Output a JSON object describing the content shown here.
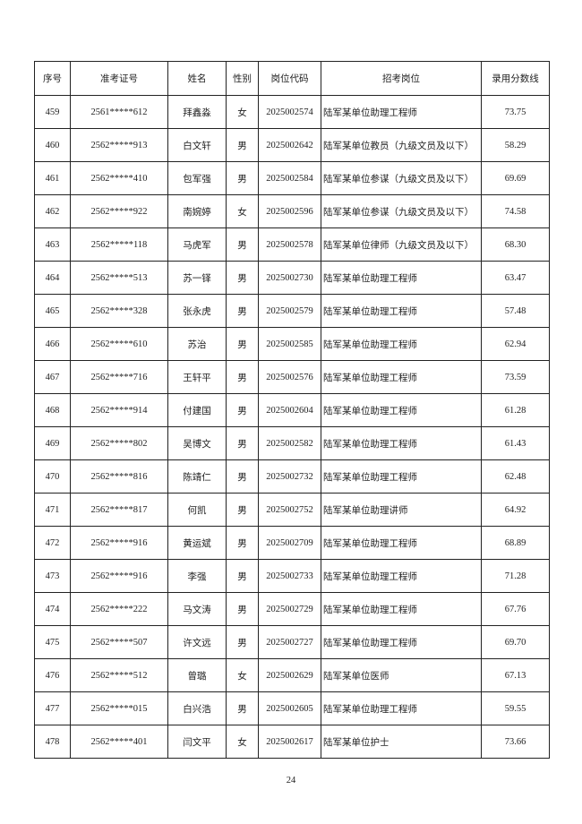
{
  "table": {
    "headers": [
      "序号",
      "准考证号",
      "姓名",
      "性别",
      "岗位代码",
      "招考岗位",
      "录用分数线"
    ],
    "rows": [
      [
        "459",
        "2561*****612",
        "拜鑫淼",
        "女",
        "2025002574",
        "陆军某单位助理工程师",
        "73.75"
      ],
      [
        "460",
        "2562*****913",
        "白文轩",
        "男",
        "2025002642",
        "陆军某单位教员（九级文员及以下）",
        "58.29"
      ],
      [
        "461",
        "2562*****410",
        "包军强",
        "男",
        "2025002584",
        "陆军某单位参谋（九级文员及以下）",
        "69.69"
      ],
      [
        "462",
        "2562*****922",
        "南婉婷",
        "女",
        "2025002596",
        "陆军某单位参谋（九级文员及以下）",
        "74.58"
      ],
      [
        "463",
        "2562*****118",
        "马虎军",
        "男",
        "2025002578",
        "陆军某单位律师（九级文员及以下）",
        "68.30"
      ],
      [
        "464",
        "2562*****513",
        "苏一铎",
        "男",
        "2025002730",
        "陆军某单位助理工程师",
        "63.47"
      ],
      [
        "465",
        "2562*****328",
        "张永虎",
        "男",
        "2025002579",
        "陆军某单位助理工程师",
        "57.48"
      ],
      [
        "466",
        "2562*****610",
        "苏治",
        "男",
        "2025002585",
        "陆军某单位助理工程师",
        "62.94"
      ],
      [
        "467",
        "2562*****716",
        "王轩平",
        "男",
        "2025002576",
        "陆军某单位助理工程师",
        "73.59"
      ],
      [
        "468",
        "2562*****914",
        "付建国",
        "男",
        "2025002604",
        "陆军某单位助理工程师",
        "61.28"
      ],
      [
        "469",
        "2562*****802",
        "吴博文",
        "男",
        "2025002582",
        "陆军某单位助理工程师",
        "61.43"
      ],
      [
        "470",
        "2562*****816",
        "陈靖仁",
        "男",
        "2025002732",
        "陆军某单位助理工程师",
        "62.48"
      ],
      [
        "471",
        "2562*****817",
        "何凯",
        "男",
        "2025002752",
        "陆军某单位助理讲师",
        "64.92"
      ],
      [
        "472",
        "2562*****916",
        "黄运斌",
        "男",
        "2025002709",
        "陆军某单位助理工程师",
        "68.89"
      ],
      [
        "473",
        "2562*****916",
        "李强",
        "男",
        "2025002733",
        "陆军某单位助理工程师",
        "71.28"
      ],
      [
        "474",
        "2562*****222",
        "马文涛",
        "男",
        "2025002729",
        "陆军某单位助理工程师",
        "67.76"
      ],
      [
        "475",
        "2562*****507",
        "许文远",
        "男",
        "2025002727",
        "陆军某单位助理工程师",
        "69.70"
      ],
      [
        "476",
        "2562*****512",
        "曾璐",
        "女",
        "2025002629",
        "陆军某单位医师",
        "67.13"
      ],
      [
        "477",
        "2562*****015",
        "白兴浩",
        "男",
        "2025002605",
        "陆军某单位助理工程师",
        "59.55"
      ],
      [
        "478",
        "2562*****401",
        "闫文平",
        "女",
        "2025002617",
        "陆军某单位护士",
        "73.66"
      ]
    ]
  },
  "page_number": "24"
}
